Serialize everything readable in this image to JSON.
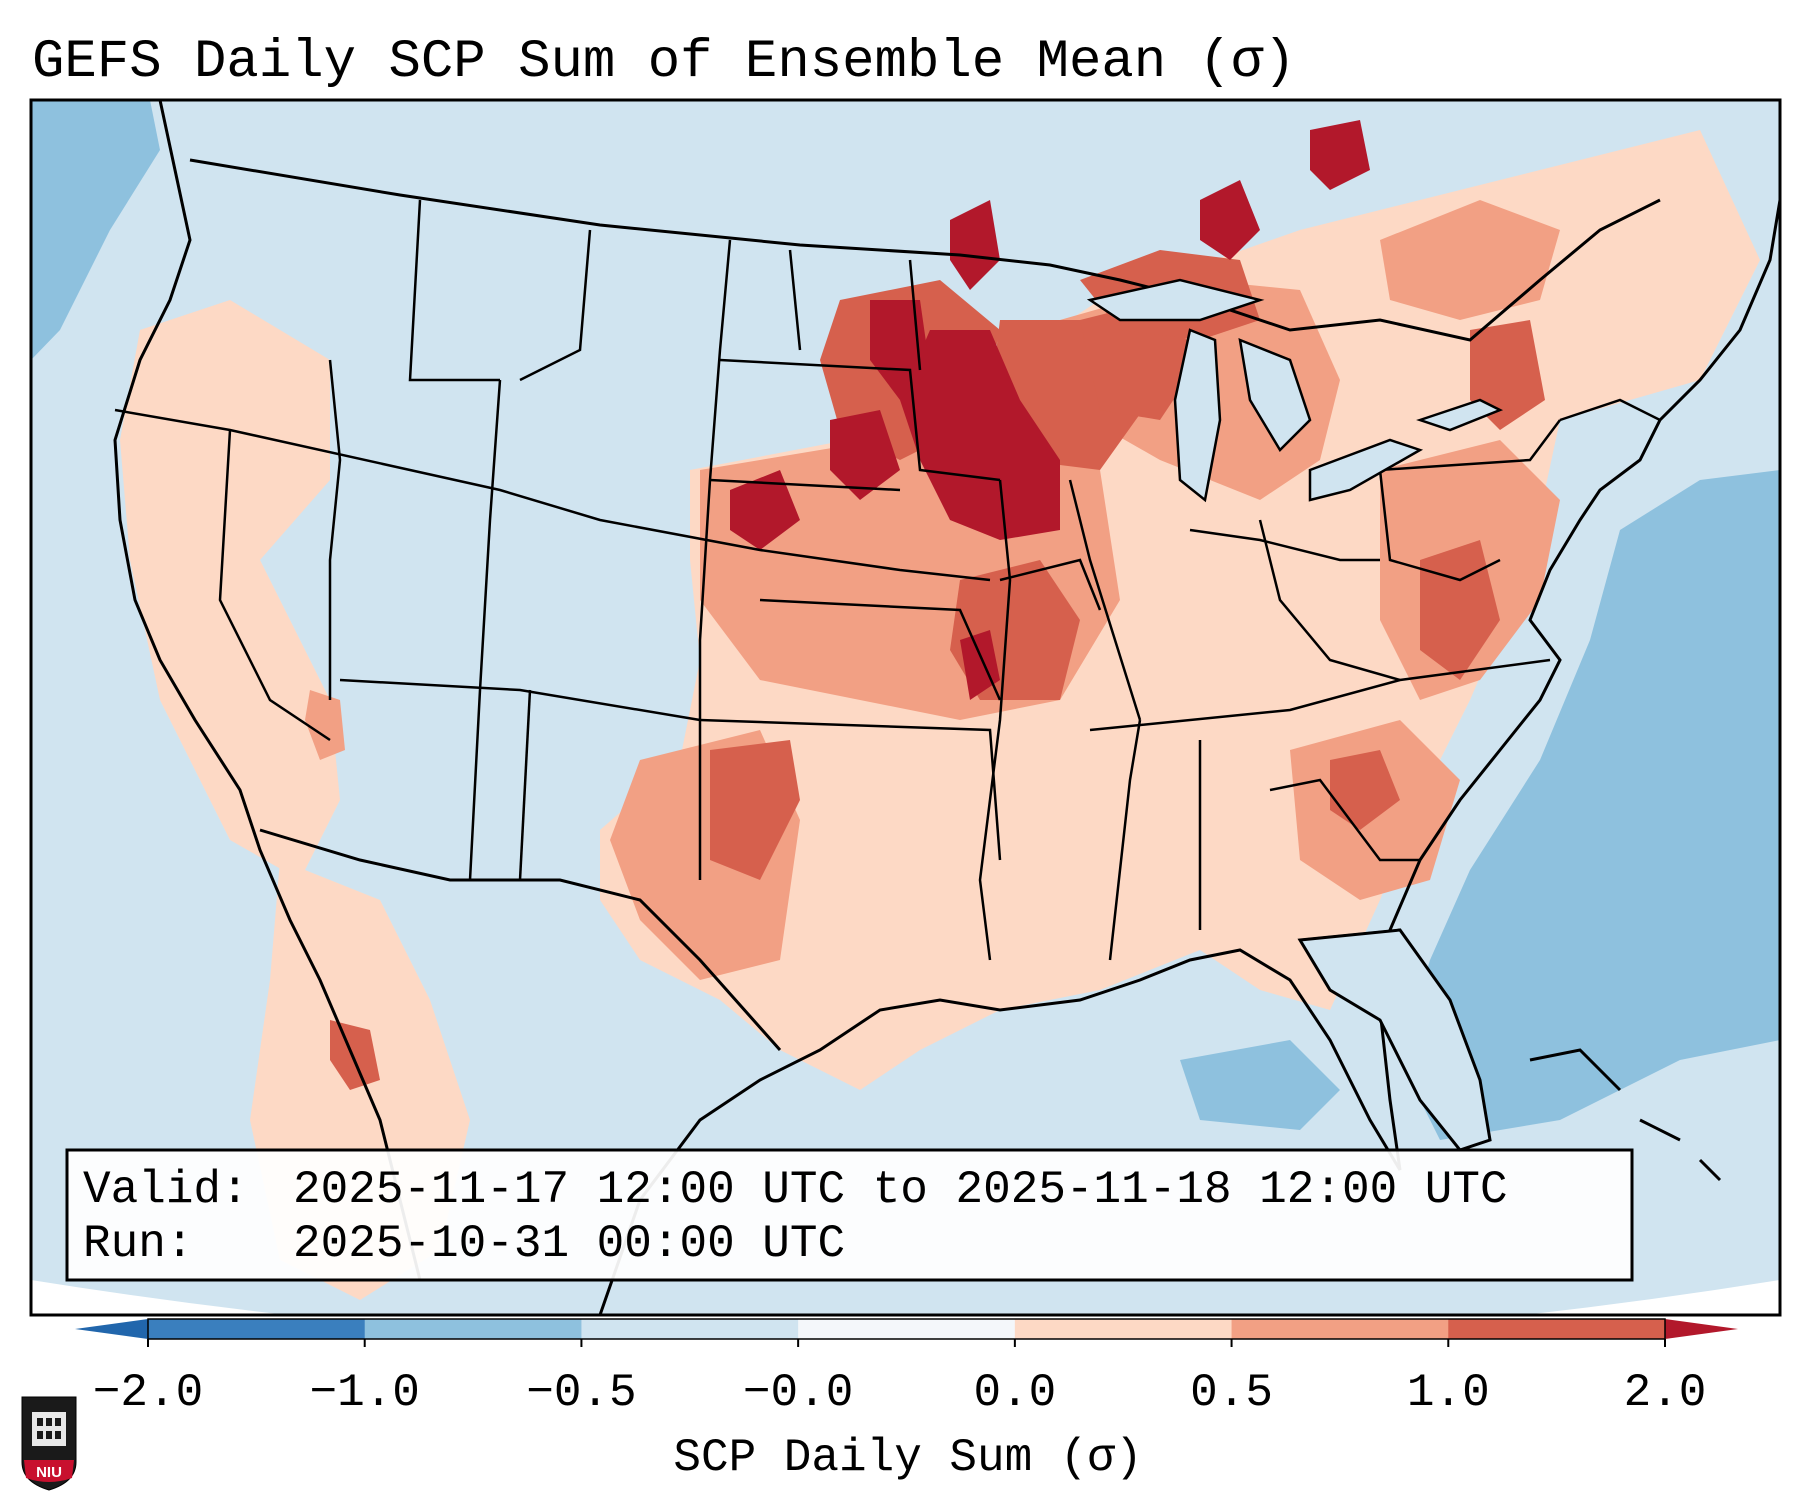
{
  "title": "GEFS Daily SCP Sum of Ensemble Mean (σ)",
  "info": {
    "valid_label": "Valid:",
    "valid_value": "2025-11-17 12:00 UTC to 2025-11-18 12:00 UTC",
    "run_label": "Run:",
    "run_value": "2025-10-31 00:00 UTC"
  },
  "colorbar": {
    "label": "SCP Daily Sum (σ)",
    "ticks": [
      "−2.0",
      "−1.0",
      "−0.5",
      "−0.0",
      "0.0",
      "0.5",
      "1.0",
      "2.0"
    ],
    "bins": [
      {
        "color": "#3a7fbe"
      },
      {
        "color": "#8ec1de"
      },
      {
        "color": "#d0e4f0"
      },
      {
        "color": "#f4f7fa"
      },
      {
        "color": "#fdd9c5"
      },
      {
        "color": "#f2a084"
      },
      {
        "color": "#d6604d"
      }
    ],
    "under_color": "#2166ac",
    "over_color": "#b2182b"
  },
  "logo": {
    "text": "NIU"
  },
  "map": {
    "background_color": "#d0e4f0",
    "regions": [
      {
        "name": "northern-plains-max",
        "value": 2.0,
        "color": "#b2182b"
      },
      {
        "name": "upper-midwest-enhanced",
        "value": 1.0,
        "color": "#d6604d"
      },
      {
        "name": "southern-plains-enhanced",
        "value": 1.0,
        "color": "#d6604d"
      },
      {
        "name": "southeast-elevated",
        "value": 0.5,
        "color": "#f2a084"
      },
      {
        "name": "east-broad-positive",
        "value": 0.0,
        "color": "#fdd9c5"
      },
      {
        "name": "atlantic-negative",
        "value": -1.0,
        "color": "#8ec1de"
      }
    ]
  }
}
